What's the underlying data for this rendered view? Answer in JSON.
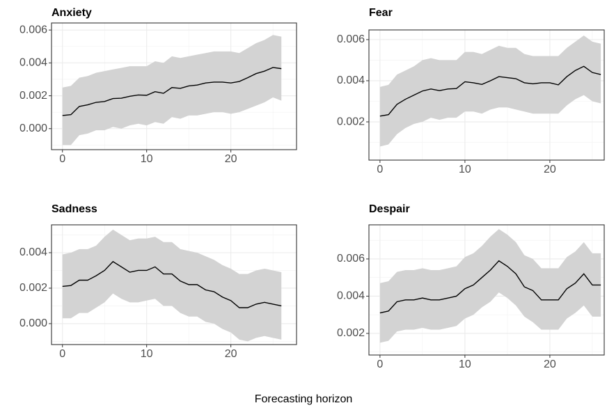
{
  "chart_data": [
    {
      "type": "line",
      "title": "Anxiety",
      "x": [
        0,
        1,
        2,
        3,
        4,
        5,
        6,
        7,
        8,
        9,
        10,
        11,
        12,
        13,
        14,
        15,
        16,
        17,
        18,
        19,
        20,
        21,
        22,
        23,
        24,
        25,
        26
      ],
      "values": [
        0.0008,
        0.00085,
        0.00135,
        0.00145,
        0.0016,
        0.00165,
        0.00183,
        0.00185,
        0.00197,
        0.00205,
        0.00203,
        0.00225,
        0.00215,
        0.0025,
        0.00245,
        0.0026,
        0.00265,
        0.00278,
        0.00283,
        0.00283,
        0.00278,
        0.00287,
        0.0031,
        0.00335,
        0.0035,
        0.00372,
        0.00365
      ],
      "upper": [
        0.0025,
        0.0026,
        0.0031,
        0.0032,
        0.0034,
        0.0035,
        0.0036,
        0.0037,
        0.0038,
        0.0038,
        0.0038,
        0.0041,
        0.004,
        0.0044,
        0.0043,
        0.0044,
        0.0045,
        0.0046,
        0.0047,
        0.0047,
        0.0047,
        0.0046,
        0.0049,
        0.0052,
        0.0054,
        0.0057,
        0.0056
      ],
      "lower": [
        -0.001,
        -0.001,
        -0.0004,
        -0.0003,
        -0.0001,
        -0.0001,
        0.0001,
        0.0,
        0.0002,
        0.0003,
        0.0002,
        0.0004,
        0.0003,
        0.0007,
        0.0006,
        0.0008,
        0.0008,
        0.0009,
        0.001,
        0.001,
        0.0009,
        0.001,
        0.0012,
        0.0014,
        0.0016,
        0.0019,
        0.0017
      ],
      "color": "#000000",
      "band_color": "#d3d3d3",
      "xlim": [
        -1.3,
        27.8
      ],
      "ylim": [
        -0.00128,
        0.00643
      ],
      "xticks": [
        0,
        10,
        20
      ],
      "yticks": [
        {
          "value": 0,
          "label": "0.000"
        },
        0.002,
        0.004,
        0.006
      ],
      "grid": true
    },
    {
      "type": "line",
      "title": "Fear",
      "x": [
        0,
        1,
        2,
        3,
        4,
        5,
        6,
        7,
        8,
        9,
        10,
        11,
        12,
        13,
        14,
        15,
        16,
        17,
        18,
        19,
        20,
        21,
        22,
        23,
        24,
        25,
        26
      ],
      "values": [
        0.00228,
        0.00235,
        0.00285,
        0.0031,
        0.0033,
        0.0035,
        0.0036,
        0.00352,
        0.0036,
        0.00362,
        0.00395,
        0.0039,
        0.00382,
        0.004,
        0.0042,
        0.00415,
        0.0041,
        0.0039,
        0.00385,
        0.0039,
        0.0039,
        0.0038,
        0.0042,
        0.0045,
        0.0047,
        0.0044,
        0.0043
      ],
      "upper": [
        0.0037,
        0.0038,
        0.0043,
        0.0045,
        0.0047,
        0.005,
        0.0051,
        0.005,
        0.005,
        0.005,
        0.0054,
        0.0054,
        0.0053,
        0.0055,
        0.0057,
        0.0056,
        0.0056,
        0.0053,
        0.0052,
        0.0052,
        0.0052,
        0.0052,
        0.0056,
        0.0059,
        0.0062,
        0.0059,
        0.0058
      ],
      "lower": [
        0.0008,
        0.0009,
        0.0014,
        0.0017,
        0.0019,
        0.002,
        0.0022,
        0.0021,
        0.0022,
        0.0022,
        0.0025,
        0.0025,
        0.0024,
        0.0026,
        0.0027,
        0.0027,
        0.0026,
        0.0025,
        0.0024,
        0.0024,
        0.0024,
        0.0024,
        0.0028,
        0.0031,
        0.0033,
        0.003,
        0.0029
      ],
      "color": "#000000",
      "band_color": "#d3d3d3",
      "xlim": [
        -1.3,
        26.4
      ],
      "ylim": [
        0.00014,
        0.00647
      ],
      "xticks": [
        0,
        10,
        20
      ],
      "yticks": [
        0.002,
        0.004,
        0.006
      ],
      "grid": true
    },
    {
      "type": "line",
      "title": "Sadness",
      "x": [
        0,
        1,
        2,
        3,
        4,
        5,
        6,
        7,
        8,
        9,
        10,
        11,
        12,
        13,
        14,
        15,
        16,
        17,
        18,
        19,
        20,
        21,
        22,
        23,
        24,
        25,
        26
      ],
      "values": [
        0.0021,
        0.00215,
        0.00245,
        0.00245,
        0.0027,
        0.003,
        0.0035,
        0.0032,
        0.0029,
        0.003,
        0.003,
        0.0032,
        0.0028,
        0.0028,
        0.0024,
        0.0022,
        0.0022,
        0.0019,
        0.0018,
        0.0015,
        0.0013,
        0.0009,
        0.0009,
        0.0011,
        0.0012,
        0.0011,
        0.001
      ],
      "upper": [
        0.0039,
        0.004,
        0.0042,
        0.0042,
        0.0044,
        0.0049,
        0.0053,
        0.005,
        0.0047,
        0.0048,
        0.0048,
        0.0049,
        0.0046,
        0.0046,
        0.0042,
        0.0041,
        0.004,
        0.0038,
        0.0036,
        0.0033,
        0.0031,
        0.0028,
        0.0028,
        0.003,
        0.0031,
        0.003,
        0.0029
      ],
      "lower": [
        0.0003,
        0.0003,
        0.0006,
        0.0006,
        0.0009,
        0.0012,
        0.0017,
        0.0014,
        0.0012,
        0.0012,
        0.0013,
        0.0014,
        0.001,
        0.001,
        0.0006,
        0.0004,
        0.0004,
        0.0001,
        0.0,
        -0.0003,
        -0.0005,
        -0.0009,
        -0.001,
        -0.0008,
        -0.0007,
        -0.0008,
        -0.0009
      ],
      "color": "#000000",
      "band_color": "#d3d3d3",
      "xlim": [
        -1.3,
        27.8
      ],
      "ylim": [
        -0.00118,
        0.00557
      ],
      "xticks": [
        0,
        10,
        20
      ],
      "yticks": [
        {
          "value": 0,
          "label": "0.000"
        },
        0.002,
        0.004
      ],
      "grid": true
    },
    {
      "type": "line",
      "title": "Despair",
      "x": [
        0,
        1,
        2,
        3,
        4,
        5,
        6,
        7,
        8,
        9,
        10,
        11,
        12,
        13,
        14,
        15,
        16,
        17,
        18,
        19,
        20,
        21,
        22,
        23,
        24,
        25,
        26
      ],
      "values": [
        0.0031,
        0.0032,
        0.0037,
        0.0038,
        0.0038,
        0.0039,
        0.0038,
        0.0038,
        0.0039,
        0.004,
        0.0044,
        0.0046,
        0.005,
        0.0054,
        0.0059,
        0.0056,
        0.0052,
        0.0045,
        0.0043,
        0.0038,
        0.0038,
        0.0038,
        0.0044,
        0.0047,
        0.0052,
        0.0046,
        0.0046
      ],
      "upper": [
        0.0047,
        0.0048,
        0.0053,
        0.0054,
        0.0054,
        0.0055,
        0.0054,
        0.0054,
        0.0055,
        0.0056,
        0.0061,
        0.0063,
        0.0067,
        0.0072,
        0.0076,
        0.0073,
        0.0069,
        0.0062,
        0.006,
        0.0055,
        0.0055,
        0.0055,
        0.0061,
        0.0064,
        0.0069,
        0.0063,
        0.0063
      ],
      "lower": [
        0.0015,
        0.0016,
        0.0021,
        0.0022,
        0.0022,
        0.0023,
        0.0022,
        0.0022,
        0.0023,
        0.0024,
        0.0028,
        0.003,
        0.0034,
        0.0037,
        0.0042,
        0.0039,
        0.0035,
        0.0029,
        0.0026,
        0.0022,
        0.0022,
        0.0022,
        0.0028,
        0.0031,
        0.0035,
        0.0029,
        0.0029
      ],
      "color": "#000000",
      "band_color": "#d3d3d3",
      "xlim": [
        -1.3,
        26.4
      ],
      "ylim": [
        0.00084,
        0.00783
      ],
      "xticks": [
        0,
        10,
        20
      ],
      "yticks": [
        0.002,
        0.004,
        0.006
      ],
      "grid": true
    }
  ],
  "xlabel": "Forecasting horizon"
}
